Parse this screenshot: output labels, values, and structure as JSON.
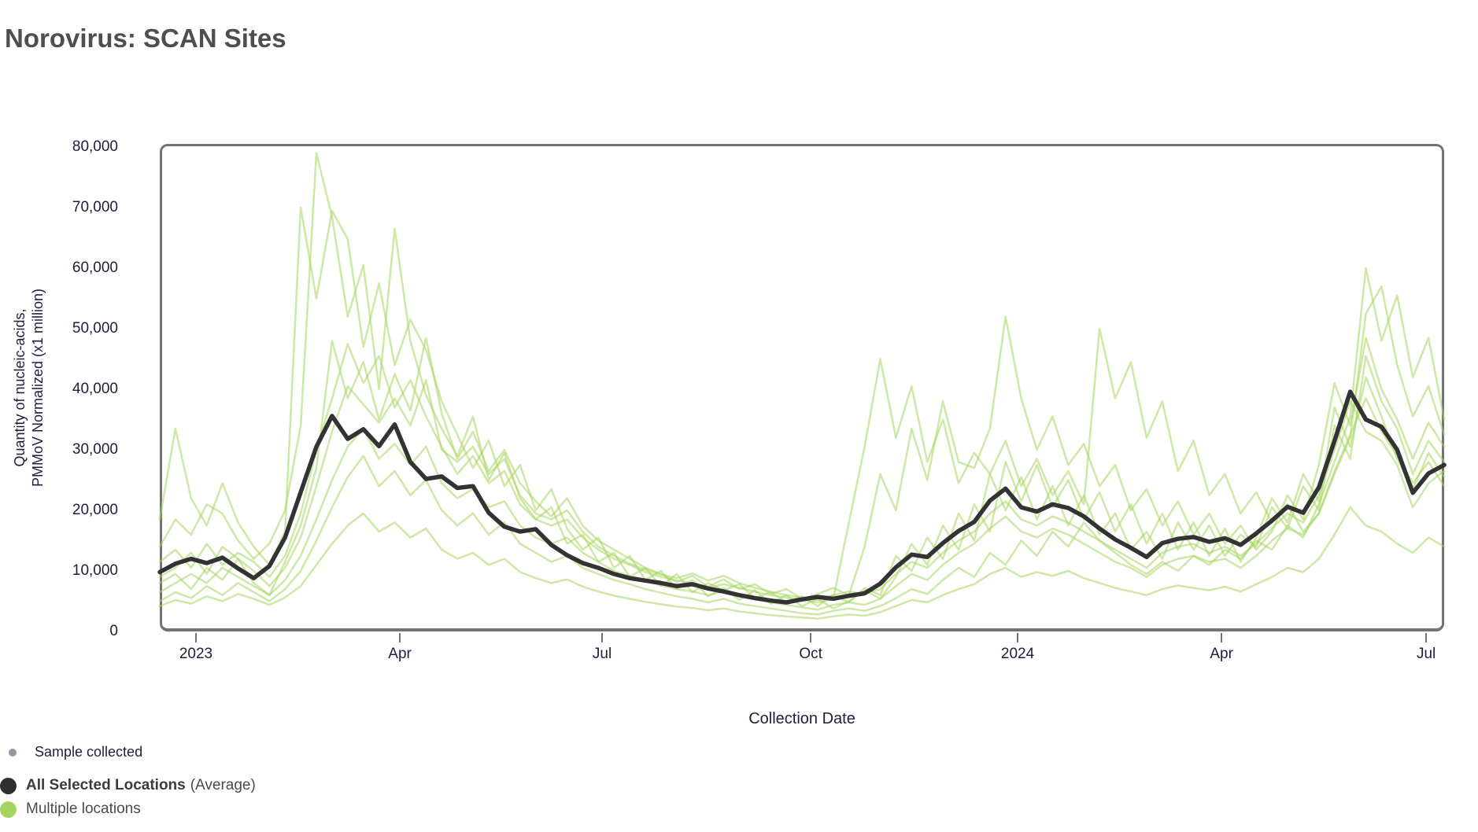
{
  "header": {
    "title": "Norovirus: SCAN Sites"
  },
  "axes": {
    "y": {
      "line1": "Quantity of nucleic-acids,",
      "line2": "PMMoV Normalized (x1 million)"
    },
    "x": {
      "title": "Collection Date"
    }
  },
  "legend": {
    "sample": {
      "label": "Sample collected",
      "color": "#9199a6"
    },
    "average": {
      "label": "All Selected Locations",
      "suffix": "(Average)",
      "color": "#2f2f2f"
    },
    "locations": {
      "label": "Multiple locations",
      "color": "#a6d55f"
    }
  },
  "chart_data": {
    "type": "line",
    "title": "Norovirus: SCAN Sites",
    "xlabel": "Collection Date",
    "ylabel": "Quantity of nucleic-acids, PMMoV Normalized (x1 million)",
    "ylim": [
      0,
      80000
    ],
    "x_start_date": "2022-12-14",
    "interval_days": 7,
    "grid": false,
    "legend_position": "bottom-left",
    "colors": {
      "average": "#333333",
      "locations": "#a6d55f",
      "axis": "#737373",
      "text": "#1e1e3c"
    },
    "y_ticks": [
      {
        "value": 0,
        "label": "0"
      },
      {
        "value": 10000,
        "label": "10,000"
      },
      {
        "value": 20000,
        "label": "20,000"
      },
      {
        "value": 30000,
        "label": "30,000"
      },
      {
        "value": 40000,
        "label": "40,000"
      },
      {
        "value": 50000,
        "label": "50,000"
      },
      {
        "value": 60000,
        "label": "60,000"
      },
      {
        "value": 70000,
        "label": "70,000"
      },
      {
        "value": 80000,
        "label": "80,000"
      }
    ],
    "x_ticks": [
      {
        "pos_week": 2.31,
        "label": "2023"
      },
      {
        "pos_week": 15.33,
        "label": "Apr"
      },
      {
        "pos_week": 28.24,
        "label": "Jul"
      },
      {
        "pos_week": 41.56,
        "label": "Oct"
      },
      {
        "pos_week": 54.77,
        "label": "2024"
      },
      {
        "pos_week": 67.79,
        "label": "Apr"
      },
      {
        "pos_week": 80.85,
        "label": "Jul"
      }
    ],
    "average": {
      "name": "All Selected Locations (Average)",
      "values": [
        9800,
        11200,
        12000,
        11300,
        12200,
        10400,
        8800,
        10800,
        15500,
        23000,
        30500,
        35600,
        31800,
        33400,
        30600,
        34200,
        28000,
        25200,
        25600,
        23700,
        24000,
        19600,
        17300,
        16500,
        16900,
        14300,
        12600,
        11300,
        10500,
        9500,
        8800,
        8400,
        8000,
        7500,
        7800,
        7100,
        6600,
        6000,
        5500,
        5100,
        4800,
        5300,
        5700,
        5400,
        5900,
        6300,
        7900,
        10600,
        12700,
        12300,
        14600,
        16600,
        18100,
        21600,
        23600,
        20500,
        19800,
        21000,
        20400,
        19000,
        17000,
        15200,
        13800,
        12300,
        14600,
        15300,
        15600,
        14800,
        15400,
        14300,
        16200,
        18300,
        20600,
        19600,
        23800,
        31500,
        39600,
        35000,
        33800,
        30000,
        22900,
        26100,
        27500
      ]
    },
    "locations": [
      {
        "name": "Location 1",
        "values": [
          14000,
          18500,
          16000,
          21000,
          19500,
          15000,
          12000,
          14500,
          20000,
          34000,
          79000,
          68500,
          52000,
          60500,
          40000,
          66500,
          48000,
          39000,
          33500,
          29000,
          35500,
          25000,
          29500,
          22000,
          18500,
          20500,
          14500,
          16000,
          11500,
          13000,
          9000,
          10500,
          7500,
          9500,
          6500,
          8000,
          6800,
          7800,
          5500,
          6500,
          4800,
          5800,
          4200,
          6000,
          4800,
          7200,
          6000,
          12500,
          10000,
          15500,
          12000,
          19500,
          15000,
          26000,
          20000,
          25500,
          18500,
          24000,
          17500,
          22500,
          16000,
          19500,
          13500,
          16500,
          12000,
          18000,
          13500,
          17500,
          12500,
          16000,
          14000,
          20500,
          17000,
          24000,
          20000,
          34000,
          28500,
          45500,
          38000,
          33500,
          26000,
          31500,
          28000
        ]
      },
      {
        "name": "Location 2",
        "values": [
          18500,
          33500,
          22000,
          17500,
          24500,
          18000,
          14000,
          11000,
          16500,
          70000,
          55000,
          69500,
          64800,
          47000,
          57500,
          44000,
          51500,
          46500,
          38000,
          32500,
          27000,
          31500,
          24000,
          27500,
          20000,
          23500,
          17000,
          13500,
          15500,
          10500,
          12500,
          8500,
          10000,
          7000,
          8500,
          5800,
          7200,
          5200,
          6800,
          4600,
          6000,
          4200,
          5400,
          3800,
          5000,
          6800,
          5400,
          9000,
          14500,
          11000,
          17500,
          13500,
          21000,
          16500,
          28000,
          21500,
          27500,
          20500,
          25000,
          18500,
          23000,
          16500,
          21000,
          14500,
          19500,
          13500,
          18000,
          12500,
          17000,
          11500,
          15500,
          22000,
          18000,
          26000,
          21500,
          37000,
          30500,
          42000,
          35500,
          28500,
          23500,
          29500,
          25500
        ]
      },
      {
        "name": "Location 3",
        "values": [
          8000,
          9500,
          7000,
          10500,
          8500,
          12000,
          8000,
          6000,
          11500,
          17500,
          27000,
          48000,
          38500,
          44500,
          35000,
          42500,
          36500,
          48500,
          36000,
          28500,
          33000,
          26500,
          30000,
          24500,
          21500,
          19000,
          22000,
          17500,
          15000,
          13500,
          12000,
          10500,
          9500,
          8200,
          9200,
          7400,
          8600,
          7000,
          7800,
          6200,
          7000,
          5400,
          6200,
          7200,
          6000,
          14000,
          26000,
          20000,
          33500,
          25000,
          38000,
          28000,
          27000,
          33500,
          52000,
          38500,
          30000,
          35500,
          27500,
          31000,
          24000,
          27500,
          20000,
          23500,
          17500,
          21500,
          16000,
          19500,
          14500,
          17500,
          13500,
          16500,
          22500,
          18500,
          27500,
          41000,
          34000,
          48500,
          40000,
          35000,
          28500,
          34500,
          30500
        ]
      },
      {
        "name": "Location 4",
        "values": [
          5000,
          6500,
          5500,
          7500,
          6000,
          8000,
          6500,
          5000,
          7000,
          10000,
          15000,
          20500,
          25500,
          29000,
          24000,
          26500,
          22500,
          25000,
          20000,
          17500,
          19500,
          16000,
          18000,
          14500,
          13000,
          11500,
          12500,
          10500,
          9500,
          8500,
          7800,
          7000,
          6400,
          5800,
          5400,
          4800,
          5400,
          4600,
          4200,
          3800,
          3400,
          3000,
          2800,
          3400,
          3800,
          3400,
          4200,
          5500,
          7000,
          6200,
          8500,
          10500,
          9000,
          13000,
          11000,
          15000,
          12500,
          16500,
          14000,
          18000,
          15000,
          13000,
          11000,
          9500,
          11500,
          10000,
          12500,
          11000,
          13500,
          12000,
          15000,
          13500,
          17500,
          15500,
          21000,
          28000,
          35500,
          60000,
          48000,
          55500,
          42000,
          48500,
          35000
        ]
      },
      {
        "name": "Location 5",
        "values": [
          11500,
          13500,
          10500,
          14500,
          11000,
          13000,
          11500,
          9000,
          12500,
          19500,
          30000,
          38500,
          47500,
          41000,
          45500,
          37000,
          41500,
          35500,
          30500,
          26000,
          29000,
          24500,
          26500,
          21000,
          18500,
          17500,
          18500,
          15500,
          13500,
          12000,
          11000,
          9800,
          9000,
          8400,
          8000,
          7200,
          7800,
          7200,
          6600,
          6000,
          5600,
          5200,
          4800,
          5400,
          18000,
          30500,
          45000,
          32000,
          40500,
          28000,
          35000,
          24500,
          29500,
          26000,
          31500,
          24000,
          28500,
          22500,
          26500,
          21000,
          50000,
          38500,
          44500,
          32000,
          38000,
          26500,
          31500,
          22500,
          26000,
          19500,
          23000,
          18000,
          21000,
          16500,
          19500,
          26500,
          32500,
          38500,
          33000,
          29000,
          24500,
          28000,
          24000
        ]
      },
      {
        "name": "Location 6",
        "values": [
          4200,
          5200,
          4600,
          5800,
          5000,
          6200,
          5400,
          4400,
          5600,
          7500,
          11000,
          14500,
          17500,
          19500,
          16500,
          18000,
          15500,
          17000,
          13500,
          12000,
          13000,
          11000,
          12000,
          9800,
          8800,
          8000,
          8600,
          7400,
          6600,
          5900,
          5400,
          4900,
          4500,
          4100,
          3900,
          3500,
          3800,
          3300,
          3000,
          2700,
          2500,
          2300,
          2100,
          2500,
          2800,
          2600,
          3200,
          4200,
          5200,
          4800,
          6000,
          7000,
          7800,
          9500,
          10500,
          9000,
          9800,
          9200,
          10000,
          8800,
          8000,
          7200,
          6600,
          6000,
          7000,
          7600,
          7200,
          6800,
          7400,
          6600,
          7800,
          9000,
          10500,
          9800,
          12000,
          16000,
          20500,
          17500,
          16500,
          14500,
          13000,
          15500,
          14000
        ]
      },
      {
        "name": "Location 7",
        "values": [
          9000,
          10500,
          13000,
          9500,
          14000,
          12000,
          10000,
          7500,
          10500,
          15500,
          24000,
          33000,
          40500,
          37500,
          34500,
          38500,
          34000,
          41500,
          30000,
          28000,
          30500,
          26000,
          28500,
          22500,
          19500,
          18500,
          20000,
          16500,
          14000,
          12500,
          11200,
          10200,
          9400,
          8800,
          9600,
          8400,
          9200,
          8000,
          7200,
          6600,
          6000,
          5600,
          5200,
          6000,
          6600,
          6200,
          7000,
          9500,
          11500,
          10500,
          13000,
          15000,
          16500,
          19500,
          21500,
          18500,
          17500,
          19000,
          18000,
          16500,
          15000,
          13500,
          12000,
          10500,
          13000,
          14000,
          14500,
          13000,
          14000,
          12500,
          14500,
          17000,
          19500,
          18000,
          22500,
          30000,
          38000,
          33000,
          31500,
          27500,
          20500,
          24500,
          26500
        ]
      },
      {
        "name": "Location 8",
        "values": [
          6500,
          8000,
          9500,
          8000,
          10500,
          9000,
          7500,
          6000,
          8500,
          12500,
          18500,
          25000,
          30500,
          33500,
          28500,
          31000,
          27500,
          30500,
          24500,
          22000,
          23500,
          20500,
          21500,
          17500,
          15500,
          14500,
          15500,
          13000,
          11500,
          10000,
          9200,
          8400,
          7600,
          7000,
          6600,
          6000,
          6600,
          5800,
          5400,
          4800,
          4400,
          4000,
          3600,
          4400,
          4800,
          4400,
          5400,
          7500,
          9500,
          8500,
          11000,
          13000,
          14500,
          17000,
          19000,
          16500,
          15500,
          17000,
          16000,
          14500,
          13000,
          11500,
          10500,
          9000,
          11000,
          12000,
          12500,
          11500,
          12000,
          10500,
          12500,
          15000,
          17000,
          16000,
          19500,
          26000,
          32000,
          52500,
          57000,
          44000,
          35500,
          40500,
          32500
        ]
      }
    ]
  }
}
